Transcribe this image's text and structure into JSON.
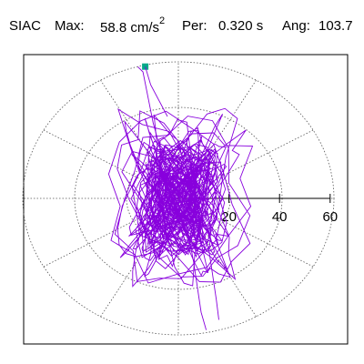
{
  "header": {
    "station": "SIAC",
    "max_label": "Max:",
    "max_value": "58.8 cm/s",
    "max_exp": "2",
    "per_label": "Per:",
    "per_value": "0.320 s",
    "ang_label": "Ang:",
    "ang_value": "103.7"
  },
  "colors": {
    "trace": "#8800dd",
    "marker": "#00aa88",
    "grid": "#555555",
    "frame": "#000000"
  },
  "chart_data": {
    "type": "scatter",
    "title": "SIAC   Max:  58.8 cm/s2  Per:  0.320 s  Ang: 103.7",
    "radial_axis": {
      "ticks": [
        20,
        40,
        60
      ],
      "tick_labels": [
        "20",
        "40",
        "60"
      ],
      "max": 60
    },
    "grid": "polar dotted circles and spokes",
    "max_point": {
      "amplitude": 58.8,
      "angle_deg": 103.7,
      "marker": "square"
    },
    "trace_description_points": [
      [
        0,
        0
      ],
      [
        -12,
        18
      ],
      [
        10,
        22
      ],
      [
        18,
        -6
      ],
      [
        -8,
        -20
      ],
      [
        -22,
        4
      ],
      [
        6,
        30
      ],
      [
        24,
        10
      ],
      [
        14,
        -26
      ],
      [
        -18,
        -14
      ],
      [
        -4,
        40
      ],
      [
        20,
        28
      ],
      [
        28,
        -12
      ],
      [
        -26,
        10
      ],
      [
        -14,
        32
      ],
      [
        8,
        -38
      ],
      [
        -30,
        -6
      ],
      [
        32,
        6
      ],
      [
        -16,
        58.8
      ],
      [
        4,
        -52
      ],
      [
        16,
        -48
      ],
      [
        -10,
        44
      ],
      [
        0,
        0
      ]
    ]
  }
}
